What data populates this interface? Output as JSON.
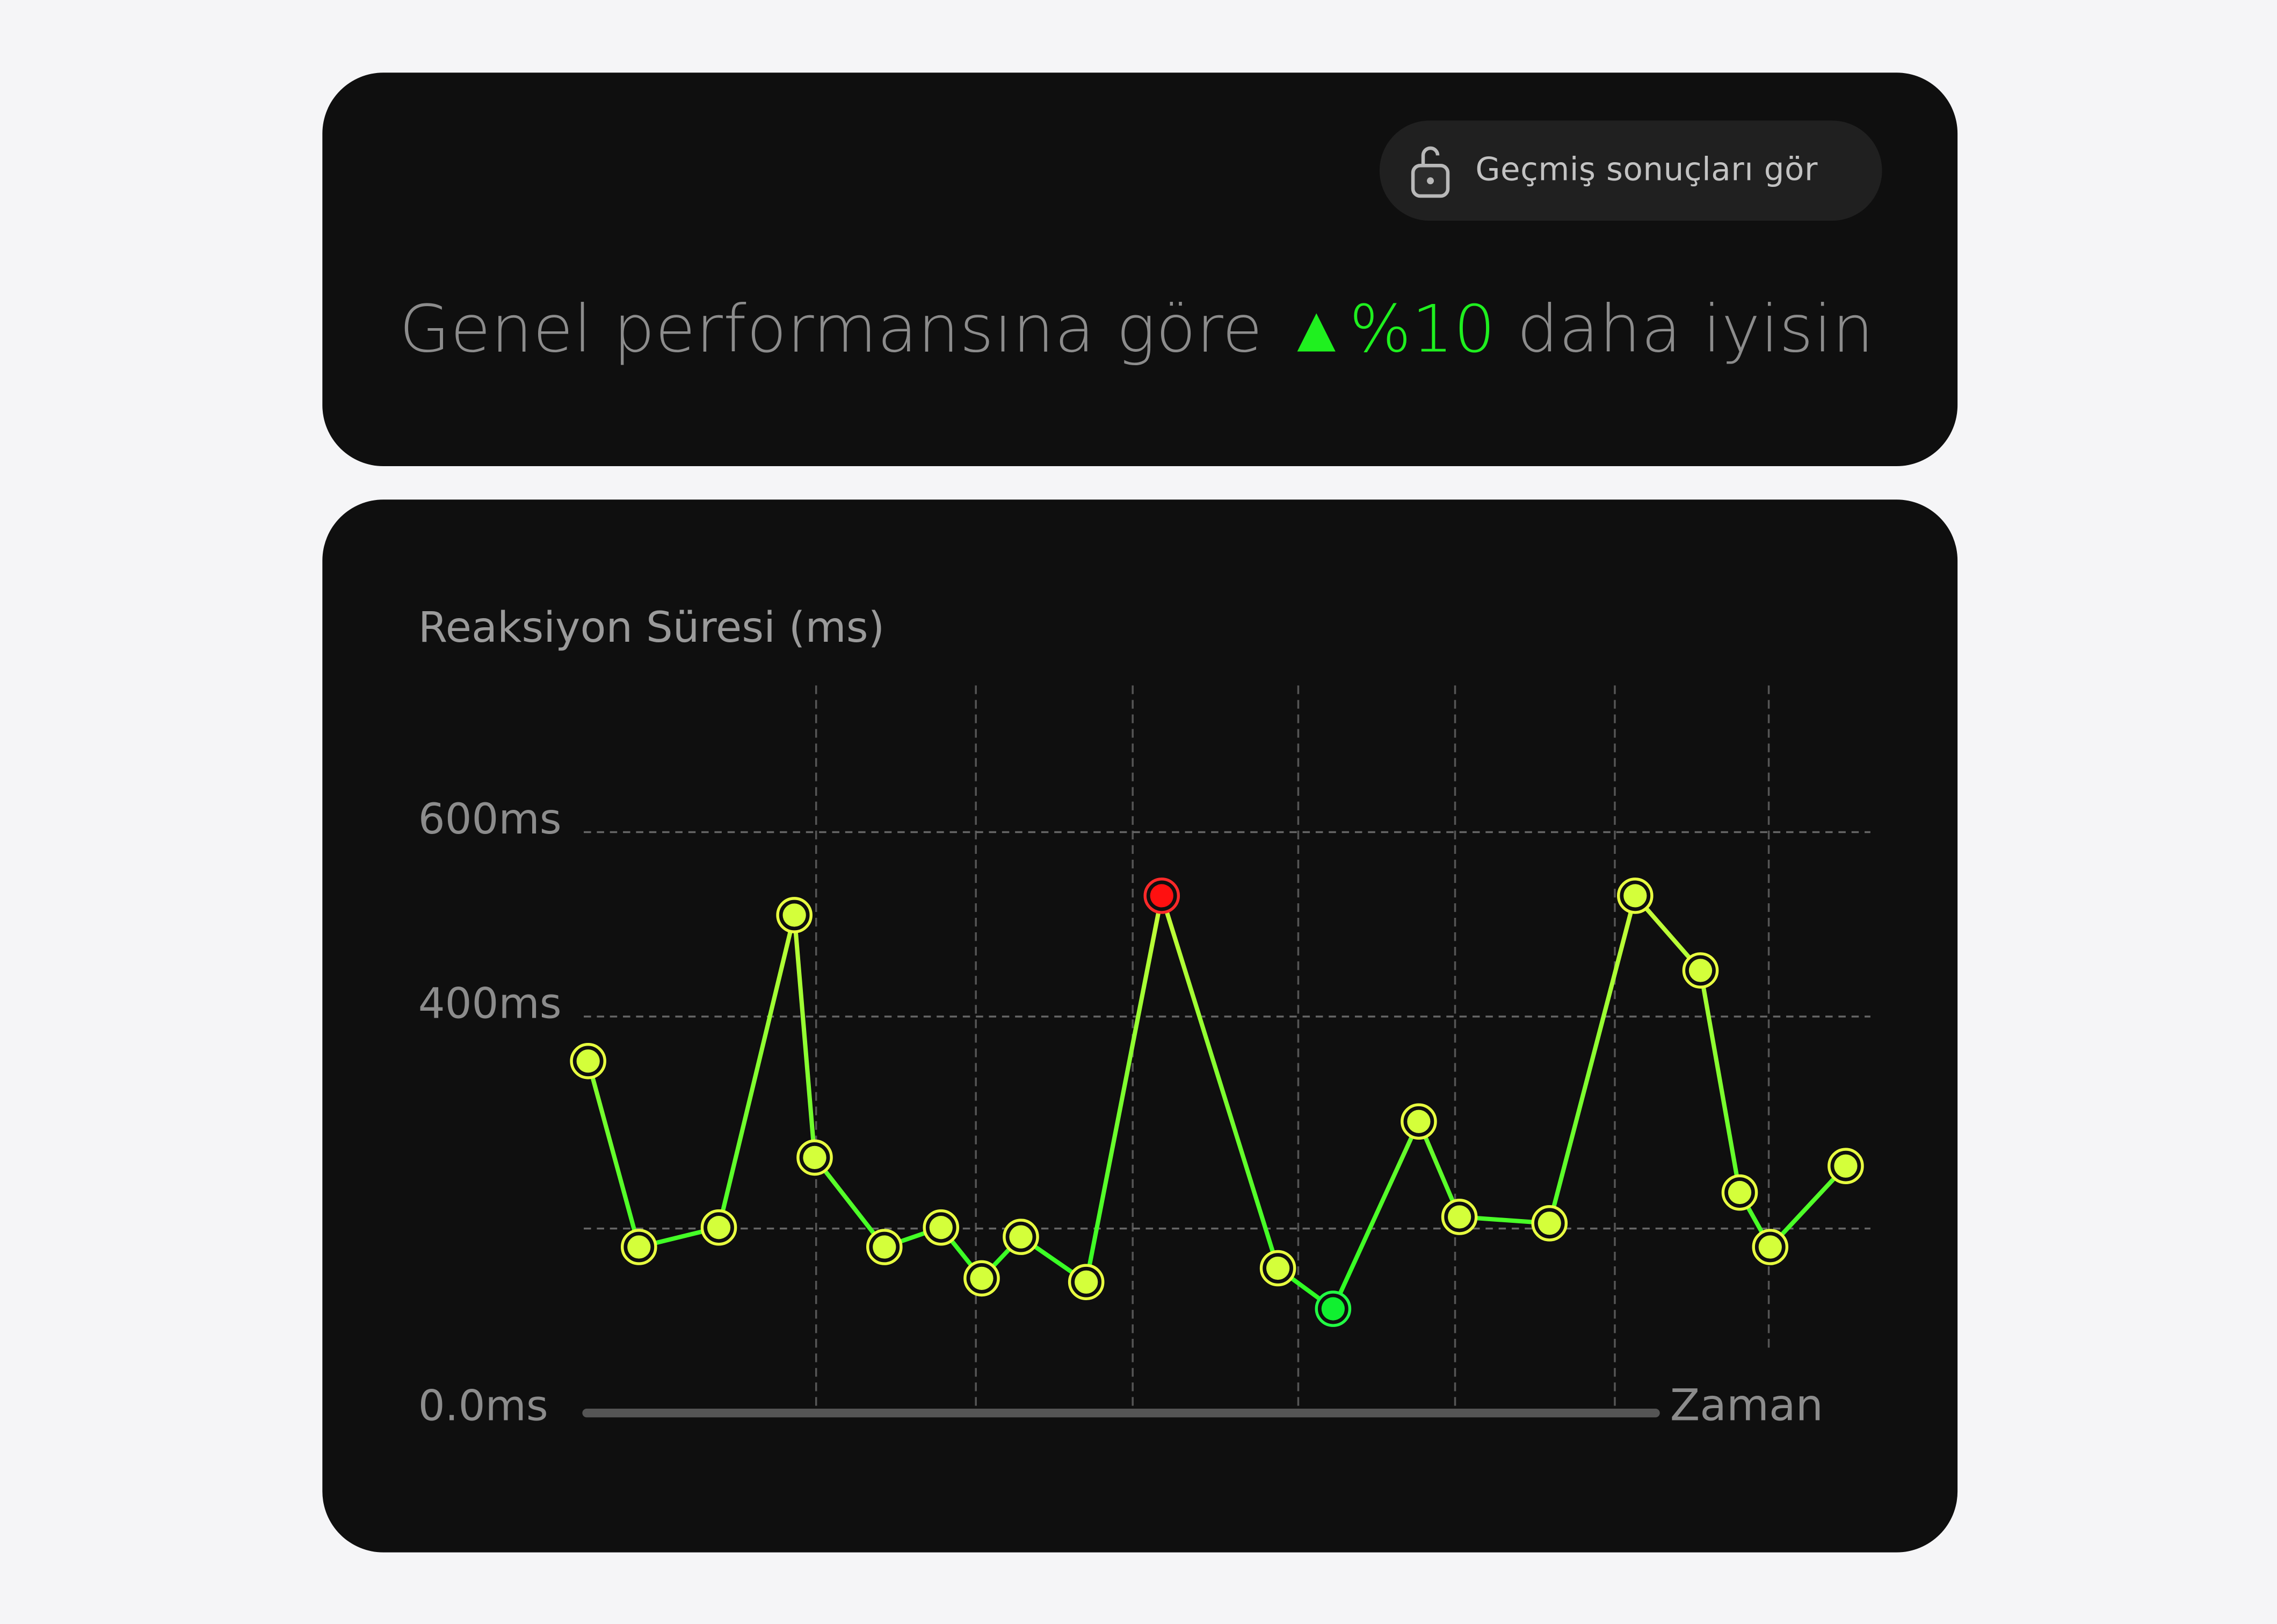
{
  "top_card": {
    "history_button": {
      "label": "Geçmiş sonuçları gör",
      "icon": "unlock-icon"
    },
    "headline": {
      "prefix": "Genel performansına göre",
      "change_arrow": "▲",
      "change": "%10",
      "suffix": "daha iyisin"
    }
  },
  "colors": {
    "card_bg": "#0f0f0f",
    "page_bg": "#f5f5f7",
    "positive": "#1ff01f",
    "point": "#d4ff3a",
    "max_point": "#ff1010",
    "min_point": "#10f030"
  },
  "chart_data": {
    "type": "line",
    "title": "Reaksiyon Süresi (ms)",
    "xlabel": "Zaman",
    "ylabel": "",
    "yticks": [
      {
        "value": 0,
        "label": "0.0ms"
      },
      {
        "value": 200,
        "label": ""
      },
      {
        "value": 400,
        "label": "400ms"
      },
      {
        "value": 600,
        "label": "600ms"
      }
    ],
    "ylim": [
      0,
      600
    ],
    "grid": true,
    "values": [
      358,
      180,
      201,
      510,
      267,
      180,
      201,
      146,
      191,
      142,
      531,
      157,
      113,
      301,
      211,
      205,
      531,
      450,
      234,
      180,
      259
    ],
    "highlight": {
      "max_index": 10,
      "min_index": 12
    }
  }
}
